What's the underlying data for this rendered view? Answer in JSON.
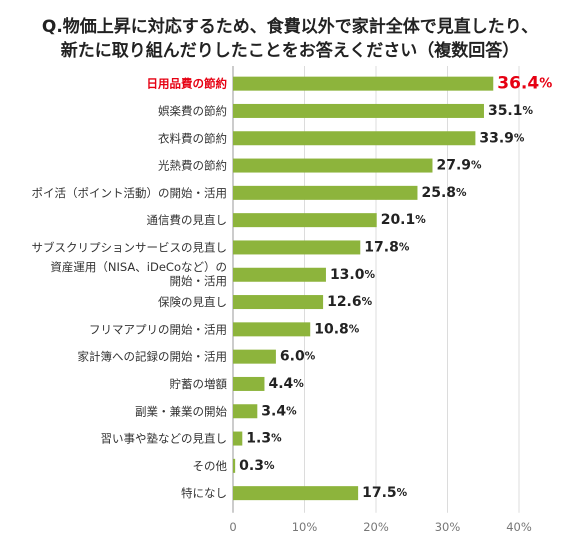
{
  "chart_data": {
    "type": "bar",
    "orientation": "horizontal",
    "title_lines": [
      "Q.物価上昇に対応するため、食費以外で家計全体で見直したり、",
      "新たに取り組んだりしたことをお答えください（複数回答）"
    ],
    "categories": [
      "日用品費の節約",
      "娯楽費の節約",
      "衣料費の節約",
      "光熱費の節約",
      "ポイ活（ポイント活動）の開始・活用",
      "通信費の見直し",
      "サブスクリプションサービスの見直し",
      "資産運用（NISA、iDeCoなど）の開始・活用",
      "保険の見直し",
      "フリマアプリの開始・活用",
      "家計簿への記録の開始・活用",
      "貯蓄の増額",
      "副業・兼業の開始",
      "習い事や塾などの見直し",
      "その他",
      "特になし"
    ],
    "category_label_lines": [
      [
        "日用品費の節約"
      ],
      [
        "娯楽費の節約"
      ],
      [
        "衣料費の節約"
      ],
      [
        "光熱費の節約"
      ],
      [
        "ポイ活（ポイント活動）の開始・活用"
      ],
      [
        "通信費の見直し"
      ],
      [
        "サブスクリプションサービスの見直し"
      ],
      [
        "資産運用（NISA、iDeCoなど）の",
        "開始・活用"
      ],
      [
        "保険の見直し"
      ],
      [
        "フリマアプリの開始・活用"
      ],
      [
        "家計簿への記録の開始・活用"
      ],
      [
        "貯蓄の増額"
      ],
      [
        "副業・兼業の開始"
      ],
      [
        "習い事や塾などの見直し"
      ],
      [
        "その他"
      ],
      [
        "特になし"
      ]
    ],
    "values": [
      36.4,
      35.1,
      33.9,
      27.9,
      25.8,
      20.1,
      17.8,
      13.0,
      12.6,
      10.8,
      6.0,
      4.4,
      3.4,
      1.3,
      0.3,
      17.5
    ],
    "value_labels": [
      "36.4",
      "35.1",
      "33.9",
      "27.9",
      "25.8",
      "20.1",
      "17.8",
      "13.0",
      "12.6",
      "10.8",
      "6.0",
      "4.4",
      "3.4",
      "1.3",
      "0.3",
      "17.5"
    ],
    "unit": "%",
    "highlight_index": 0,
    "xlim": [
      0,
      40
    ],
    "x_ticks": [
      "0",
      "10%",
      "20%",
      "30%",
      "40%"
    ],
    "x_tick_values": [
      0,
      10,
      20,
      30,
      40
    ],
    "grid": true,
    "colors": {
      "bar": "#8db43c",
      "highlight_text": "#e60012",
      "grid": "#dcdcdc",
      "axis": "#999999"
    }
  }
}
